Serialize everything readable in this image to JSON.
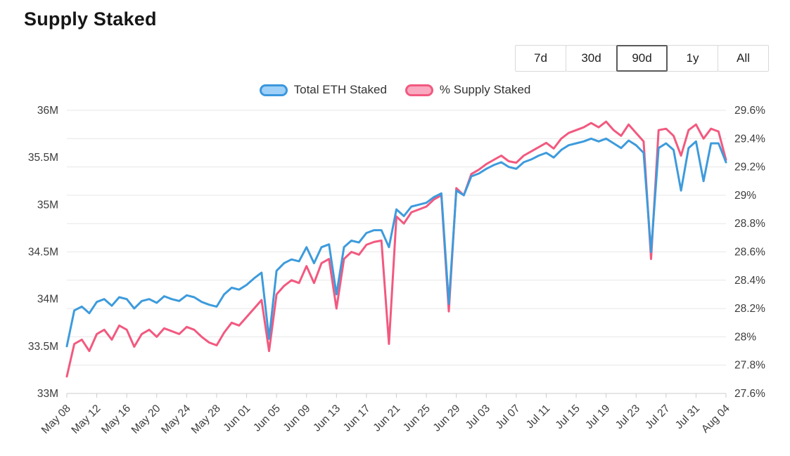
{
  "page": {
    "title": "Supply Staked"
  },
  "range_selector": {
    "selected": "90d",
    "options": [
      {
        "label": "7d"
      },
      {
        "label": "30d"
      },
      {
        "label": "90d"
      },
      {
        "label": "1y"
      },
      {
        "label": "All"
      }
    ]
  },
  "legend": {
    "items": [
      {
        "label": "Total ETH Staked",
        "line_color": "#3d9bdc",
        "swatch_fill": "#9fd0f7"
      },
      {
        "label": "% Supply Staked",
        "line_color": "#f2597f",
        "swatch_fill": "#f9a9c0"
      }
    ]
  },
  "chart_data": {
    "type": "line",
    "title": "Supply Staked",
    "xlabel": "",
    "grid": true,
    "legend_position": "top",
    "x": [
      "May 08",
      "May 09",
      "May 10",
      "May 11",
      "May 12",
      "May 13",
      "May 14",
      "May 15",
      "May 16",
      "May 17",
      "May 18",
      "May 19",
      "May 20",
      "May 21",
      "May 22",
      "May 23",
      "May 24",
      "May 25",
      "May 26",
      "May 27",
      "May 28",
      "May 29",
      "May 30",
      "May 31",
      "Jun 01",
      "Jun 02",
      "Jun 03",
      "Jun 04",
      "Jun 05",
      "Jun 06",
      "Jun 07",
      "Jun 08",
      "Jun 09",
      "Jun 10",
      "Jun 11",
      "Jun 12",
      "Jun 13",
      "Jun 14",
      "Jun 15",
      "Jun 16",
      "Jun 17",
      "Jun 18",
      "Jun 19",
      "Jun 20",
      "Jun 21",
      "Jun 22",
      "Jun 23",
      "Jun 24",
      "Jun 25",
      "Jun 26",
      "Jun 27",
      "Jun 28",
      "Jun 29",
      "Jun 30",
      "Jul 01",
      "Jul 02",
      "Jul 03",
      "Jul 04",
      "Jul 05",
      "Jul 06",
      "Jul 07",
      "Jul 08",
      "Jul 09",
      "Jul 10",
      "Jul 11",
      "Jul 12",
      "Jul 13",
      "Jul 14",
      "Jul 15",
      "Jul 16",
      "Jul 17",
      "Jul 18",
      "Jul 19",
      "Jul 20",
      "Jul 21",
      "Jul 22",
      "Jul 23",
      "Jul 24",
      "Jul 25",
      "Jul 26",
      "Jul 27",
      "Jul 28",
      "Jul 29",
      "Jul 30",
      "Jul 31",
      "Aug 01",
      "Aug 02",
      "Aug 03",
      "Aug 04"
    ],
    "x_tick_every": 4,
    "left_axis": {
      "min": 33,
      "max": 36,
      "unit": "M",
      "ticks": [
        "33M",
        "33.5M",
        "34M",
        "34.5M",
        "35M",
        "35.5M",
        "36M"
      ]
    },
    "right_axis": {
      "min": 27.6,
      "max": 29.6,
      "unit": "%",
      "ticks": [
        "27.6%",
        "27.8%",
        "28%",
        "28.2%",
        "28.4%",
        "28.6%",
        "28.8%",
        "29%",
        "29.2%",
        "29.4%",
        "29.6%"
      ]
    },
    "series": [
      {
        "name": "Total ETH Staked",
        "axis": "left",
        "color": "#3d9bdc",
        "values": [
          33.5,
          33.88,
          33.92,
          33.85,
          33.97,
          34.0,
          33.93,
          34.02,
          34.0,
          33.9,
          33.98,
          34.0,
          33.96,
          34.03,
          34.0,
          33.98,
          34.04,
          34.02,
          33.97,
          33.94,
          33.92,
          34.05,
          34.12,
          34.1,
          34.15,
          34.22,
          34.28,
          33.58,
          34.3,
          34.38,
          34.42,
          34.4,
          34.55,
          34.38,
          34.55,
          34.58,
          34.05,
          34.55,
          34.62,
          34.6,
          34.7,
          34.73,
          34.73,
          34.55,
          34.95,
          34.88,
          34.98,
          35.0,
          35.02,
          35.08,
          35.12,
          33.95,
          35.15,
          35.1,
          35.3,
          35.33,
          35.38,
          35.42,
          35.45,
          35.4,
          35.38,
          35.45,
          35.48,
          35.52,
          35.55,
          35.5,
          35.58,
          35.63,
          35.65,
          35.67,
          35.7,
          35.67,
          35.7,
          35.65,
          35.6,
          35.68,
          35.63,
          35.55,
          34.5,
          35.6,
          35.65,
          35.58,
          35.15,
          35.6,
          35.67,
          35.25,
          35.65,
          35.65,
          35.45
        ]
      },
      {
        "name": "% Supply Staked",
        "axis": "right",
        "color": "#f2597f",
        "values": [
          27.72,
          27.95,
          27.98,
          27.9,
          28.02,
          28.05,
          27.98,
          28.08,
          28.05,
          27.93,
          28.02,
          28.05,
          28.0,
          28.06,
          28.04,
          28.02,
          28.07,
          28.05,
          28.0,
          27.96,
          27.94,
          28.03,
          28.1,
          28.08,
          28.14,
          28.2,
          28.26,
          27.9,
          28.3,
          28.36,
          28.4,
          28.38,
          28.5,
          28.38,
          28.52,
          28.55,
          28.2,
          28.55,
          28.6,
          28.58,
          28.65,
          28.67,
          28.68,
          27.95,
          28.85,
          28.8,
          28.88,
          28.9,
          28.92,
          28.97,
          29.0,
          28.18,
          29.05,
          29.0,
          29.15,
          29.18,
          29.22,
          29.25,
          29.28,
          29.24,
          29.23,
          29.28,
          29.31,
          29.34,
          29.37,
          29.33,
          29.4,
          29.44,
          29.46,
          29.48,
          29.51,
          29.48,
          29.52,
          29.46,
          29.42,
          29.5,
          29.44,
          29.38,
          28.55,
          29.46,
          29.47,
          29.42,
          29.28,
          29.46,
          29.5,
          29.4,
          29.47,
          29.45,
          29.25
        ]
      }
    ]
  }
}
